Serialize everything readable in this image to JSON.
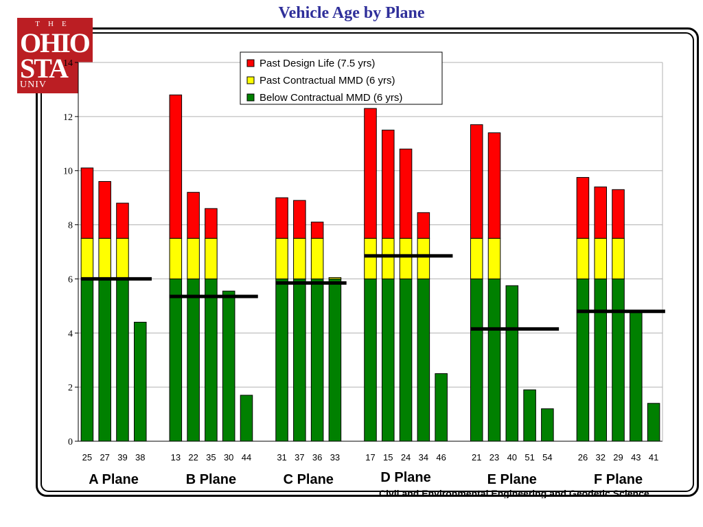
{
  "title": "Vehicle Age by Plane",
  "logo": {
    "line1": "THE",
    "line2": "OHIO",
    "line3": "STA",
    "line4": "UNIV"
  },
  "footer": "Civil and Environmental Engineering and Geodetic Science",
  "colors": {
    "past_design": "#ff0000",
    "past_mmd": "#ffff00",
    "below_mmd": "#008000",
    "title": "#2f2f9a"
  },
  "chart_data": {
    "type": "bar",
    "stacked": true,
    "ylim": [
      0,
      14
    ],
    "yticks": [
      0,
      2,
      4,
      6,
      8,
      10,
      12,
      14
    ],
    "grid": true,
    "legend_position": "top",
    "series_names": [
      "Past Design Life (7.5 yrs)",
      "Past Contractual MMD (6 yrs)",
      "Below Contractual MMD (6 yrs)"
    ],
    "groups": [
      {
        "label": "A Plane",
        "average": 6.0,
        "vehicles": [
          {
            "id": "25",
            "age": 10.1
          },
          {
            "id": "27",
            "age": 9.6
          },
          {
            "id": "39",
            "age": 8.8
          },
          {
            "id": "38",
            "age": 4.4
          }
        ]
      },
      {
        "label": "B Plane",
        "average": 5.35,
        "vehicles": [
          {
            "id": "13",
            "age": 12.8
          },
          {
            "id": "22",
            "age": 9.2
          },
          {
            "id": "35",
            "age": 8.6
          },
          {
            "id": "30",
            "age": 5.55
          },
          {
            "id": "44",
            "age": 1.7
          }
        ]
      },
      {
        "label": "C Plane",
        "average": 5.85,
        "vehicles": [
          {
            "id": "31",
            "age": 9.0
          },
          {
            "id": "37",
            "age": 8.9
          },
          {
            "id": "36",
            "age": 8.1
          },
          {
            "id": "33",
            "age": 6.05
          }
        ]
      },
      {
        "label": "D Plane",
        "average": 6.85,
        "vehicles": [
          {
            "id": "17",
            "age": 12.3
          },
          {
            "id": "15",
            "age": 11.5
          },
          {
            "id": "24",
            "age": 10.8
          },
          {
            "id": "34",
            "age": 8.45
          },
          {
            "id": "46",
            "age": 2.5
          }
        ]
      },
      {
        "label": "E Plane",
        "average": 4.15,
        "vehicles": [
          {
            "id": "21",
            "age": 11.7
          },
          {
            "id": "23",
            "age": 11.4
          },
          {
            "id": "40",
            "age": 5.75
          },
          {
            "id": "51",
            "age": 1.9
          },
          {
            "id": "54",
            "age": 1.2
          }
        ]
      },
      {
        "label": "F Plane",
        "average": 4.8,
        "vehicles": [
          {
            "id": "26",
            "age": 9.75
          },
          {
            "id": "32",
            "age": 9.4
          },
          {
            "id": "29",
            "age": 9.3
          },
          {
            "id": "43",
            "age": 4.75
          },
          {
            "id": "41",
            "age": 1.4
          }
        ]
      }
    ]
  }
}
